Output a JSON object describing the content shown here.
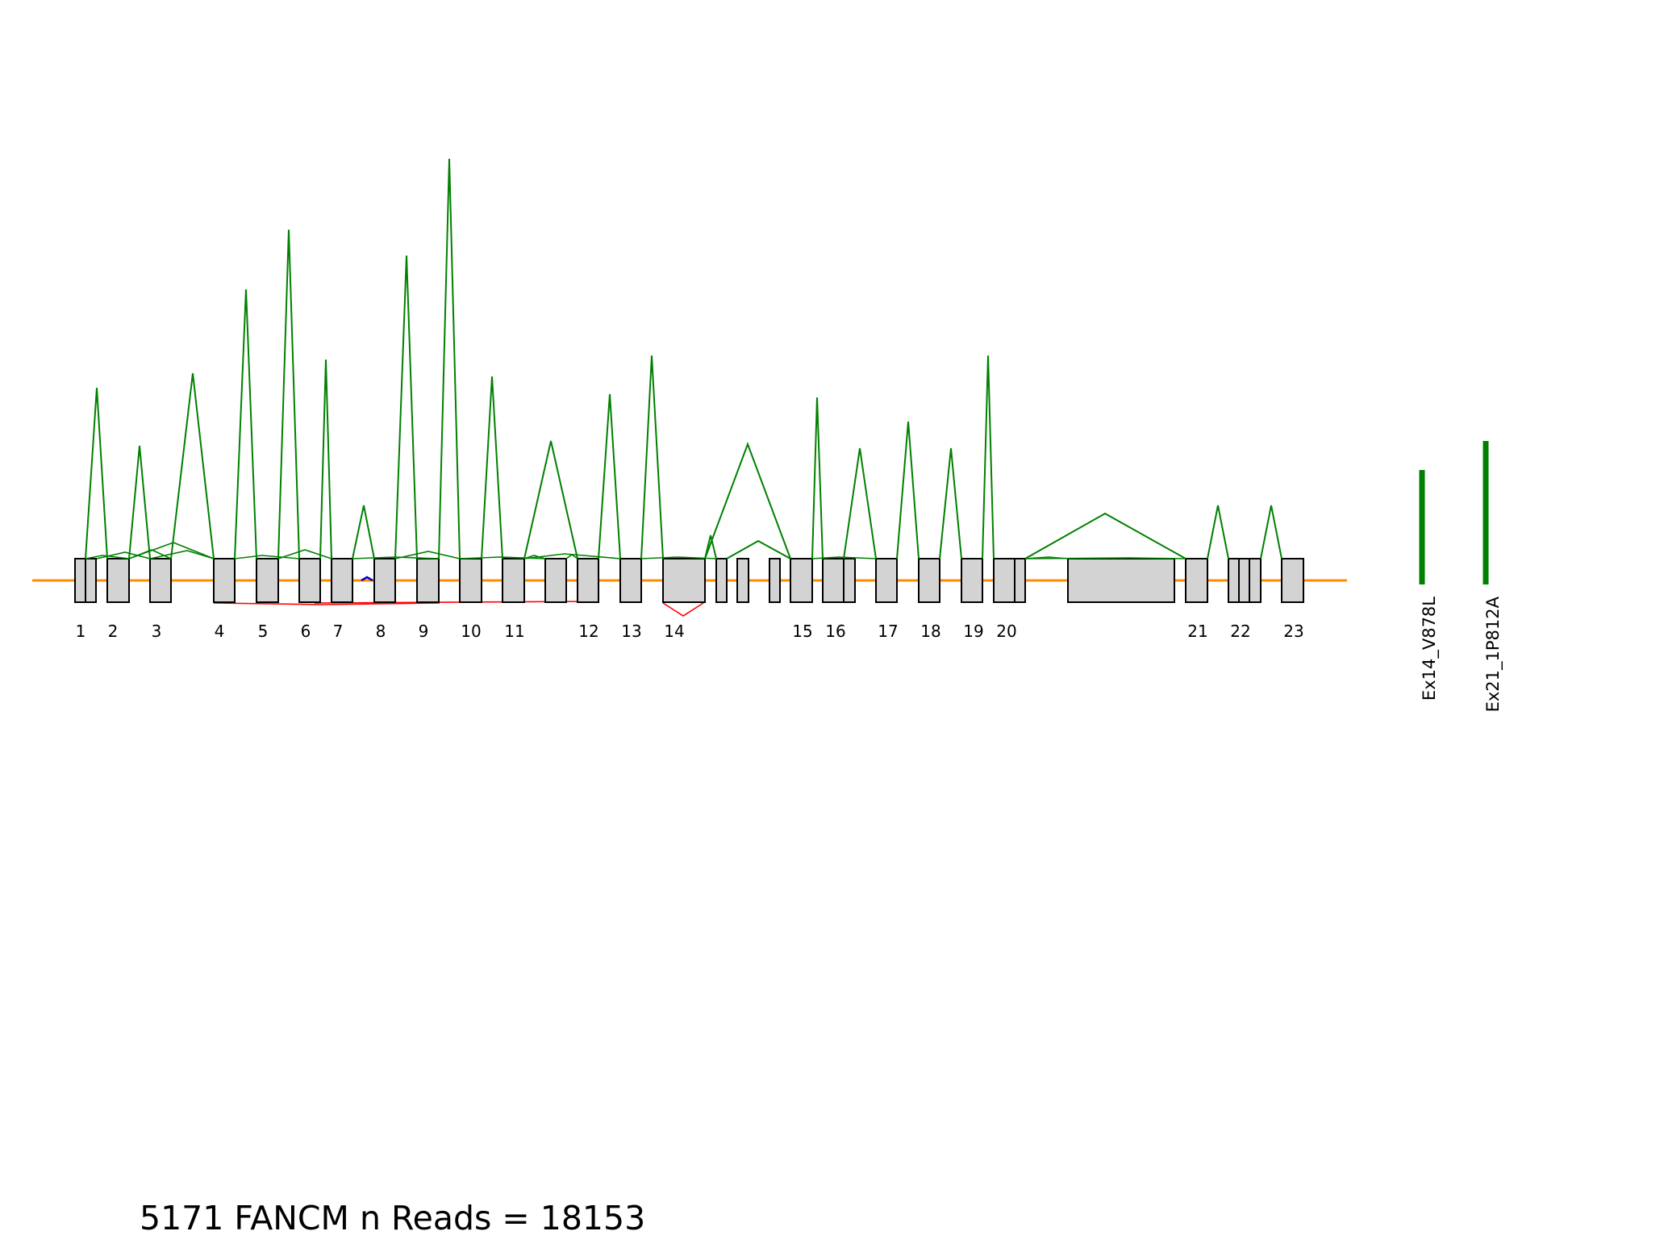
{
  "figure": {
    "title": "5171 FANCM n Reads = 18153",
    "colors": {
      "background": "#ffffff",
      "backbone": "#ff8c00",
      "exon_fill": "#d3d3d3",
      "exon_edge": "#000000",
      "junction_main": "#008000",
      "junction_negative": "#ff0000",
      "junction_minor": "#0000cc",
      "variant_bar": "#008000"
    }
  },
  "exon_labels": [
    "1",
    "2",
    "3",
    "4",
    "5",
    "6",
    "7",
    "8",
    "9",
    "10",
    "11",
    "12",
    "13",
    "14",
    "15",
    "16",
    "17",
    "18",
    "19",
    "20",
    "21",
    "22",
    "23"
  ],
  "variants": [
    {
      "label": "Ex14_V878L"
    },
    {
      "label": "Ex21_1P812A"
    }
  ],
  "diagram_type": "sashimi"
}
